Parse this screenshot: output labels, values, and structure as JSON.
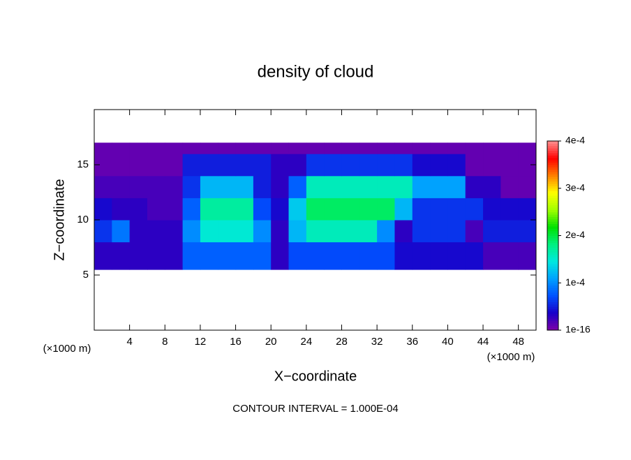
{
  "chart_data": {
    "type": "contour",
    "title": "density of cloud",
    "xlabel": "X−coordinate",
    "ylabel": "Z−coordinate",
    "x_unit_left": "(×1000 m)",
    "x_unit_right": "(×1000 m)",
    "annotation": "CONTOUR INTERVAL = 1.000E-04",
    "xlim": [
      0,
      50
    ],
    "ylim": [
      0,
      20
    ],
    "xticks": [
      4,
      8,
      12,
      16,
      20,
      24,
      28,
      32,
      36,
      40,
      44,
      48
    ],
    "yticks": [
      5,
      10,
      15
    ],
    "xbins": [
      0,
      2,
      4,
      6,
      8,
      10,
      12,
      14,
      16,
      18,
      20,
      22,
      24,
      26,
      28,
      30,
      32,
      34,
      36,
      38,
      40,
      42,
      44,
      46,
      48,
      50
    ],
    "ybins": [
      5.5,
      8,
      10,
      12,
      14,
      16,
      17
    ],
    "z": [
      [
        3e-05,
        3e-05,
        3e-05,
        3e-05,
        3e-05,
        8e-05,
        8e-05,
        8e-05,
        8e-05,
        8e-05,
        3e-05,
        7e-05,
        7e-05,
        7e-05,
        7e-05,
        7e-05,
        7e-05,
        4e-05,
        4e-05,
        4e-05,
        4e-05,
        4e-05,
        2e-05,
        2e-05,
        2e-05
      ],
      [
        6e-05,
        9e-05,
        3e-05,
        3e-05,
        3e-05,
        0.0001,
        0.00015,
        0.00015,
        0.00015,
        0.0001,
        3e-05,
        0.00012,
        0.00016,
        0.00016,
        0.00016,
        0.00016,
        0.0001,
        3e-05,
        6e-05,
        6e-05,
        6e-05,
        2e-05,
        5e-05,
        5e-05,
        5e-05
      ],
      [
        4e-05,
        3e-05,
        3e-05,
        2e-05,
        2e-05,
        8e-05,
        0.00017,
        0.00017,
        0.00017,
        7e-05,
        4e-05,
        0.00013,
        0.00019,
        0.00019,
        0.00019,
        0.00019,
        0.00019,
        0.00012,
        6e-05,
        6e-05,
        6e-05,
        6e-05,
        4e-05,
        4e-05,
        4e-05
      ],
      [
        2e-05,
        2e-05,
        2e-05,
        2e-05,
        2e-05,
        6e-05,
        0.00012,
        0.00012,
        0.00012,
        5e-05,
        3e-05,
        8e-05,
        0.00016,
        0.00016,
        0.00016,
        0.00016,
        0.00016,
        0.00016,
        0.00011,
        0.00011,
        0.00011,
        3e-05,
        3e-05,
        1e-05,
        1e-05
      ],
      [
        1e-05,
        1e-05,
        1e-05,
        1e-05,
        1e-05,
        5e-05,
        5e-05,
        5e-05,
        5e-05,
        5e-05,
        3e-05,
        3e-05,
        6e-05,
        6e-05,
        6e-05,
        6e-05,
        6e-05,
        6e-05,
        4e-05,
        4e-05,
        4e-05,
        1e-05,
        1e-05,
        1e-05,
        1e-05
      ],
      [
        1e-05,
        1e-05,
        1e-05,
        1e-05,
        1e-05,
        1e-05,
        1e-05,
        1e-05,
        1e-05,
        1e-05,
        1e-05,
        1e-05,
        1e-05,
        1e-05,
        1e-05,
        1e-05,
        1e-05,
        1e-05,
        1e-05,
        1e-05,
        1e-05,
        1e-05,
        1e-05,
        1e-05,
        1e-05
      ]
    ],
    "colorbar": {
      "lim": [
        0,
        0.0004
      ],
      "ticks": [
        1e-16,
        {
          "value": 0.0001,
          "label": "1e-4"
        },
        {
          "value": 0.0002,
          "label": "2e-4"
        },
        {
          "value": 0.0003,
          "label": "3e-4"
        },
        {
          "value": 0.0004,
          "label": "4e-4"
        }
      ],
      "colormap": [
        "#7f00a8",
        "#1a00c8",
        "#0050ff",
        "#00a0ff",
        "#00e8e0",
        "#00f080",
        "#00e000",
        "#a0ff00",
        "#ffff00",
        "#ff8000",
        "#ff0000",
        "#ff9090"
      ]
    }
  }
}
